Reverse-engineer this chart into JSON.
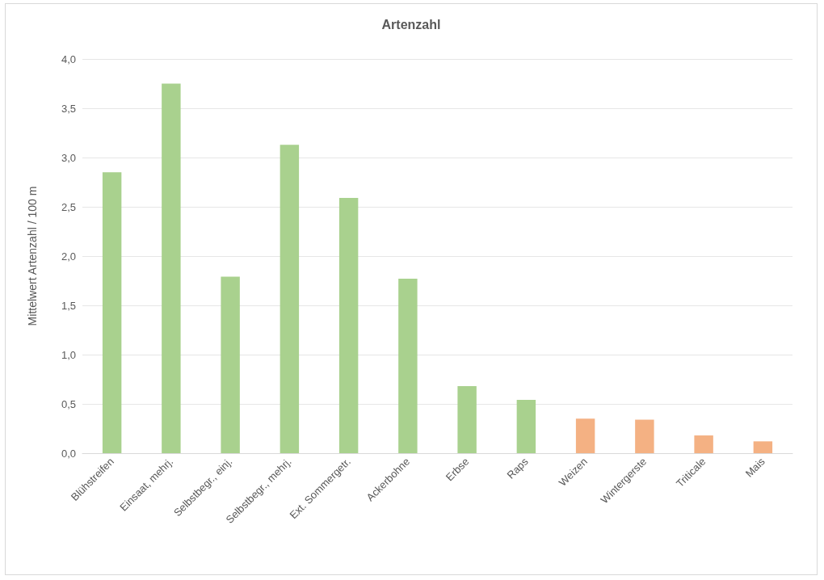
{
  "chart_data": {
    "type": "bar",
    "title": "Artenzahl",
    "ylabel": "Mittelwert Artenzahl / 100 m",
    "categories": [
      "Blühstreifen",
      "Einsaat, mehrj.",
      "Selbstbegr., einj.",
      "Selbstbegr., mehrj.",
      "Ext. Sommergetr.",
      "Ackerbohne",
      "Erbse",
      "Raps",
      "Weizen",
      "Wintergerste",
      "Triticale",
      "Mais"
    ],
    "values": [
      2.85,
      3.75,
      1.79,
      3.13,
      2.59,
      1.77,
      0.68,
      0.54,
      0.35,
      0.34,
      0.18,
      0.12
    ],
    "colors": [
      "#a9d18e",
      "#a9d18e",
      "#a9d18e",
      "#a9d18e",
      "#a9d18e",
      "#a9d18e",
      "#a9d18e",
      "#a9d18e",
      "#f4b183",
      "#f4b183",
      "#f4b183",
      "#f4b183"
    ],
    "ylim": [
      0,
      4
    ],
    "yticks": [
      {
        "value": 0,
        "label": "0,0"
      },
      {
        "value": 0.5,
        "label": "0,5"
      },
      {
        "value": 1,
        "label": "1,0"
      },
      {
        "value": 1.5,
        "label": "1,5"
      },
      {
        "value": 2,
        "label": "2,0"
      },
      {
        "value": 2.5,
        "label": "2,5"
      },
      {
        "value": 3,
        "label": "3,0"
      },
      {
        "value": 3.5,
        "label": "3,5"
      },
      {
        "value": 4,
        "label": "4,0"
      }
    ],
    "grid": "y"
  }
}
